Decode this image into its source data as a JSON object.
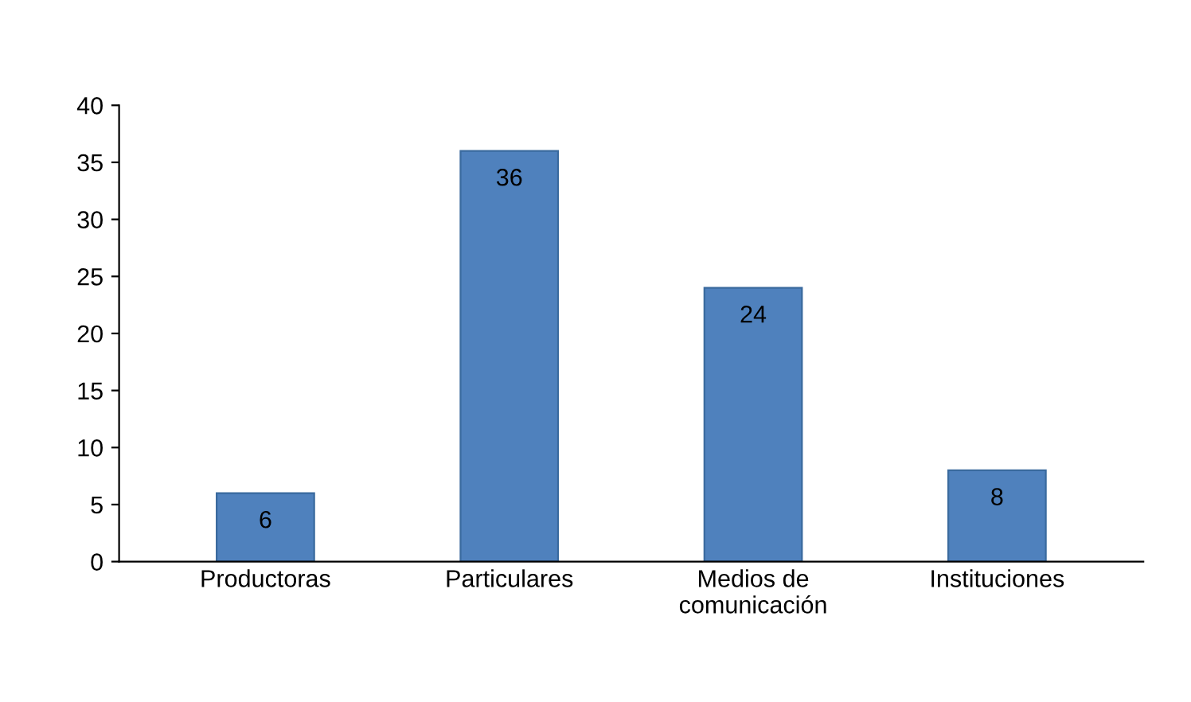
{
  "chart_data": {
    "type": "bar",
    "categories": [
      "Productoras",
      "Particulares",
      "Medios de\ncomunicación",
      "Instituciones"
    ],
    "values": [
      6,
      36,
      24,
      8
    ],
    "color": "#4f81bd",
    "ylim": [
      0,
      40
    ],
    "yticks": [
      0,
      5,
      10,
      15,
      20,
      25,
      30,
      35,
      40
    ],
    "data_labels": true,
    "grid": false
  }
}
